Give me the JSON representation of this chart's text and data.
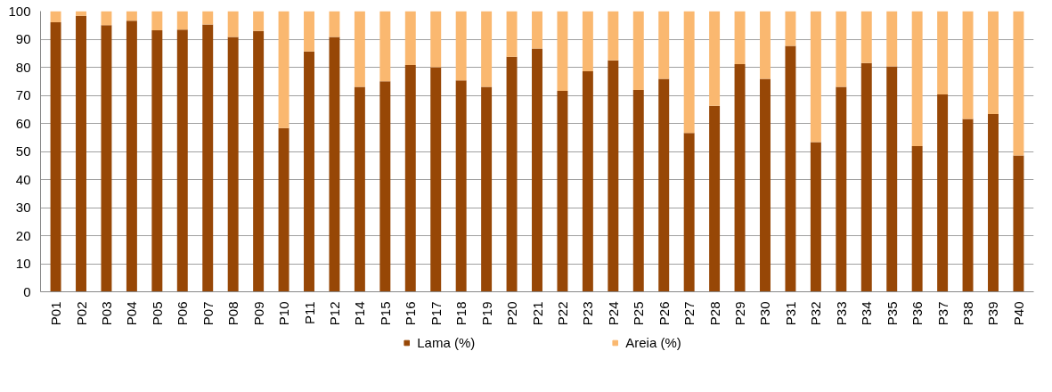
{
  "chart_data": {
    "type": "bar",
    "stacked": true,
    "categories": [
      "P01",
      "P02",
      "P03",
      "P04",
      "P05",
      "P06",
      "P07",
      "P08",
      "P09",
      "P10",
      "P11",
      "P12",
      "P14",
      "P15",
      "P16",
      "P17",
      "P18",
      "P19",
      "P20",
      "P21",
      "P22",
      "P23",
      "P24",
      "P25",
      "P26",
      "P27",
      "P28",
      "P29",
      "P30",
      "P31",
      "P32",
      "P33",
      "P34",
      "P35",
      "P36",
      "P37",
      "P38",
      "P39",
      "P40"
    ],
    "series": [
      {
        "name": "Lama (%)",
        "color": "#974706",
        "values": [
          96,
          98.3,
          95,
          96.6,
          93.2,
          93.4,
          95.2,
          90.8,
          92.9,
          58.3,
          85.6,
          90.8,
          73,
          75,
          80.8,
          80,
          75.3,
          73,
          83.7,
          86.7,
          71.6,
          78.6,
          82.5,
          71.9,
          75.9,
          56.6,
          66.3,
          81.1,
          75.9,
          87.6,
          53.3,
          73,
          81.5,
          80.3,
          51.9,
          70.3,
          61.6,
          63.3,
          48.6
        ]
      },
      {
        "name": "Areia (%)",
        "color": "#fab870",
        "values": [
          4,
          1.7,
          5,
          3.4,
          6.8,
          6.6,
          4.8,
          9.2,
          7.1,
          41.7,
          14.4,
          9.2,
          27,
          25,
          19.2,
          20,
          24.7,
          27,
          16.3,
          13.3,
          28.4,
          21.4,
          17.5,
          28.1,
          24.1,
          43.4,
          33.7,
          18.9,
          24.1,
          12.4,
          46.7,
          27,
          18.5,
          19.7,
          48.1,
          29.7,
          38.4,
          36.7,
          51.4
        ]
      }
    ],
    "ylim": [
      0,
      100
    ],
    "yticks": [
      0,
      10,
      20,
      30,
      40,
      50,
      60,
      70,
      80,
      90,
      100
    ],
    "grid": "y",
    "legend": "bottom"
  }
}
